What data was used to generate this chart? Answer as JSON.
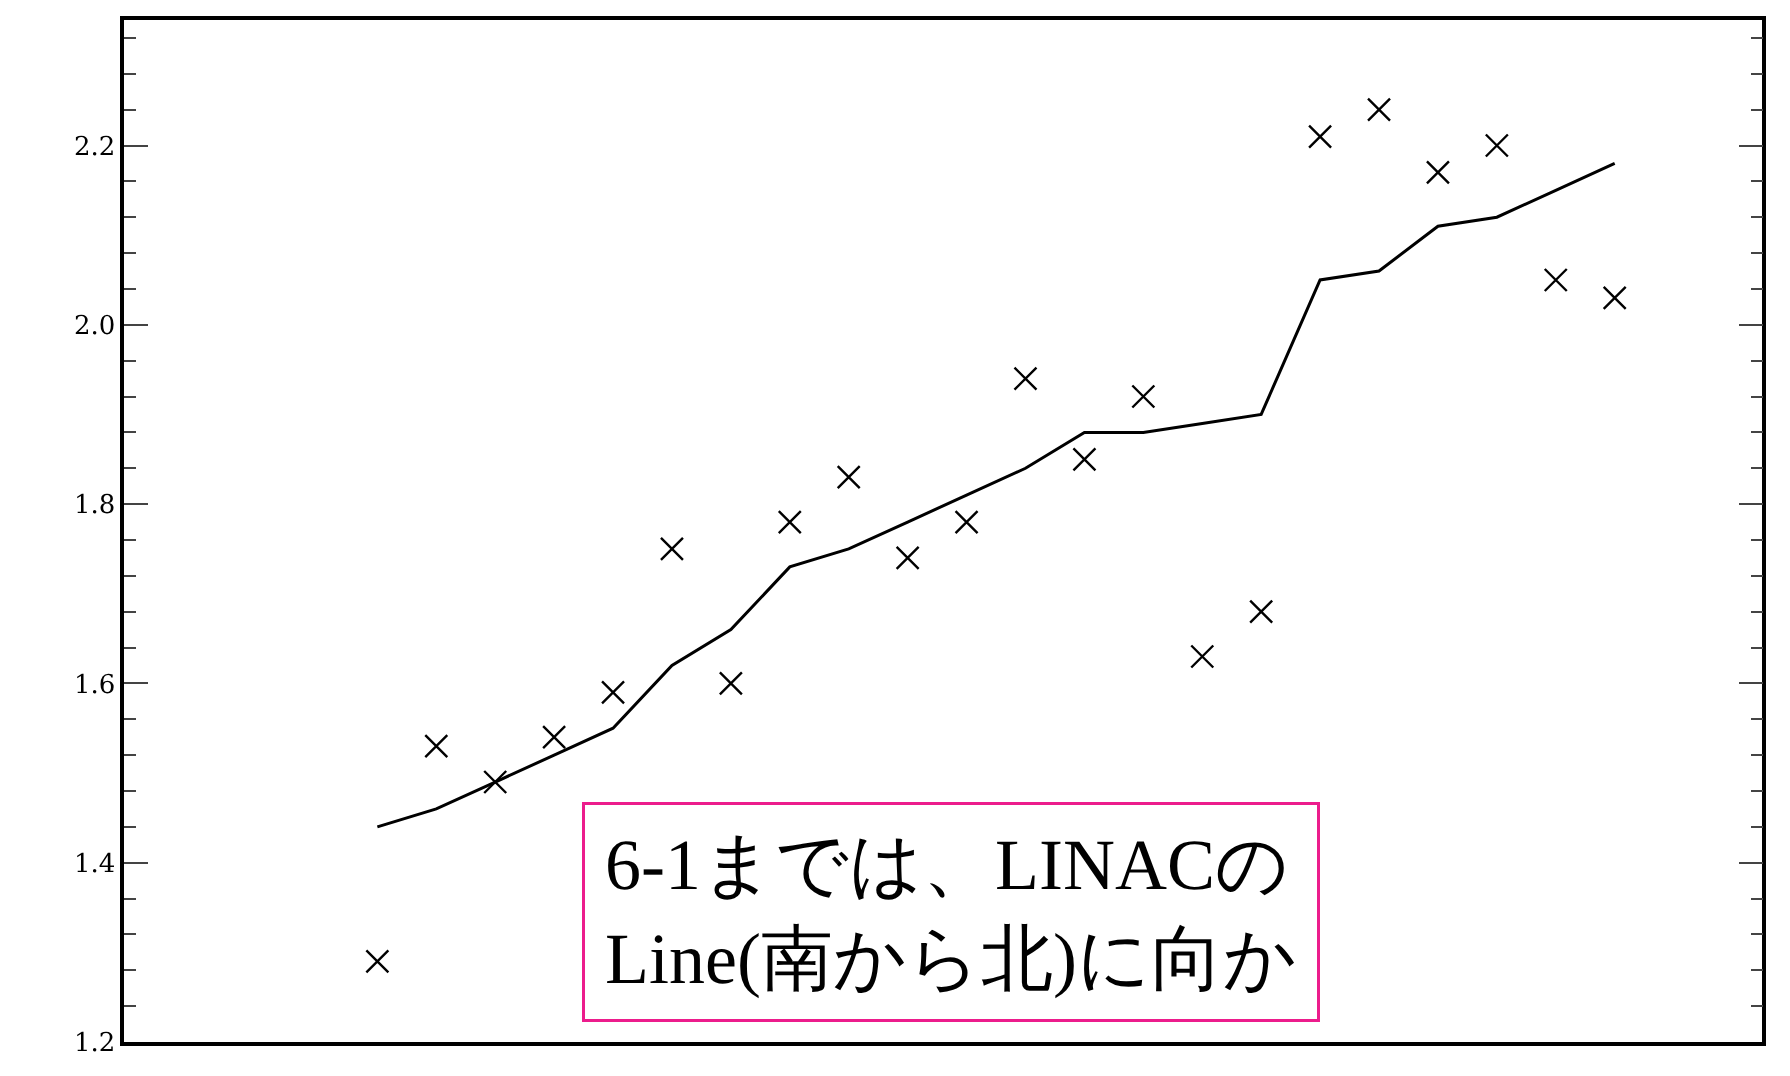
{
  "chart_data": {
    "type": "scatter",
    "categories": [
      null,
      null,
      null,
      null,
      null,
      null,
      null,
      null,
      null,
      null,
      null,
      null,
      null,
      null,
      null,
      null,
      null,
      null,
      null,
      null,
      null,
      null
    ],
    "series": [
      {
        "color": "#000000",
        "marker": "cross",
        "values": [
          1.29,
          1.53,
          1.49,
          1.54,
          1.59,
          1.75,
          1.6,
          1.78,
          1.83,
          1.74,
          1.78,
          1.94,
          1.85,
          1.92,
          1.63,
          1.68,
          2.21,
          2.24,
          2.17,
          2.2,
          2.05,
          2.03
        ]
      },
      {
        "type": "line",
        "color": "#000000",
        "line_style": "solid",
        "values": [
          1.44,
          1.46,
          1.49,
          1.52,
          1.55,
          1.62,
          1.66,
          1.73,
          1.75,
          1.78,
          1.81,
          1.84,
          1.88,
          1.88,
          1.89,
          1.9,
          2.05,
          2.06,
          2.11,
          2.12,
          2.15,
          2.18
        ]
      }
    ],
    "ylim": [
      1.2,
      2.34
    ],
    "yticks": [
      1.2,
      1.4,
      1.6,
      1.8,
      {
        "value": 2,
        "label": "2.0"
      },
      2.2
    ],
    "tick_labels": "y",
    "legend": false,
    "annotations": [
      "6-1までは、LINACの\nLine(南から北)に向か"
    ]
  }
}
